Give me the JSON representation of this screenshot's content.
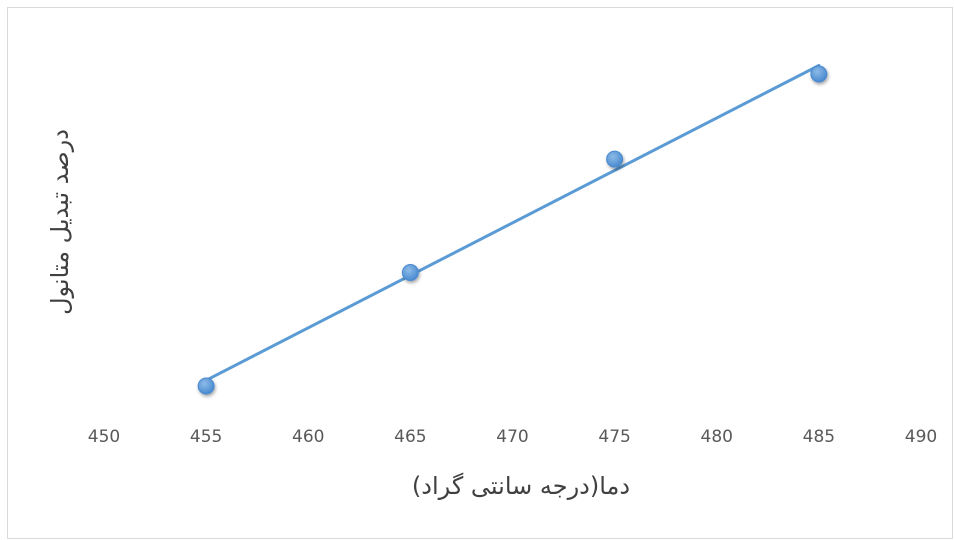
{
  "chart_data": {
    "type": "scatter",
    "title": "",
    "xlabel": "دما(درجه سانتی گراد)",
    "ylabel": "درصد تبدیل متانول",
    "xlim": [
      450,
      490
    ],
    "x_ticks": [
      "450",
      "455",
      "460",
      "465",
      "470",
      "475",
      "480",
      "485",
      "490"
    ],
    "grid": false,
    "legend": "none",
    "series": [
      {
        "x": [
          455,
          465,
          475,
          485
        ],
        "y": [
          1.0,
          2.2,
          3.4,
          4.3
        ],
        "color": "#5b9bd5",
        "marker": "circle",
        "trendline": "linear"
      }
    ]
  }
}
